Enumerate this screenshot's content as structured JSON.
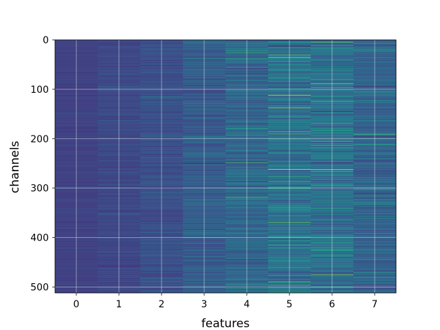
{
  "chart_data": {
    "type": "heatmap",
    "title": "",
    "xlabel": "features",
    "ylabel": "channels",
    "x_categories": [
      "0",
      "1",
      "2",
      "3",
      "4",
      "5",
      "6",
      "7"
    ],
    "y_ticks": [
      0,
      100,
      200,
      300,
      400,
      500
    ],
    "y_range": [
      0,
      512
    ],
    "y_inverted": true,
    "rows": 512,
    "grid": true,
    "colormap": "viridis",
    "column_intensity": [
      0.2,
      0.22,
      0.25,
      0.3,
      0.34,
      0.38,
      0.38,
      0.33
    ],
    "column_variation": [
      0.04,
      0.06,
      0.09,
      0.14,
      0.17,
      0.2,
      0.2,
      0.17
    ],
    "highlights": [
      {
        "feature": 5,
        "channel": 262,
        "value": 0.97
      },
      {
        "feature": 6,
        "channel": 262,
        "value": 0.94
      },
      {
        "feature": 5,
        "channel": 12,
        "value": 0.0
      },
      {
        "feature": 5,
        "channel": 190,
        "value": 0.72
      },
      {
        "feature": 6,
        "channel": 205,
        "value": 0.7
      },
      {
        "feature": 4,
        "channel": 248,
        "value": 0.68
      },
      {
        "feature": 7,
        "channel": 302,
        "value": 0.62
      },
      {
        "feature": 6,
        "channel": 340,
        "value": 0.64
      },
      {
        "feature": 5,
        "channel": 420,
        "value": 0.6
      },
      {
        "feature": 5,
        "channel": 510,
        "value": 0.62
      },
      {
        "feature": 7,
        "channel": 5,
        "value": 0.55
      },
      {
        "feature": 4,
        "channel": 178,
        "value": 0.58
      },
      {
        "feature": 6,
        "channel": 295,
        "value": 0.6
      },
      {
        "feature": 7,
        "channel": 470,
        "value": 0.56
      }
    ]
  }
}
